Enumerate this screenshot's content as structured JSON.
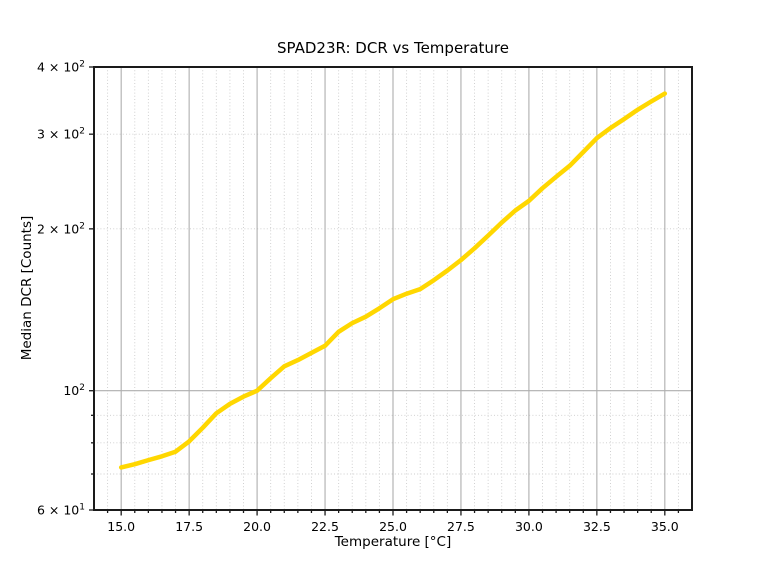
{
  "figure": {
    "background": "#ffffff",
    "axes_edge_color": "#1a1a1a",
    "major_grid_color": "#aeaeae",
    "minor_grid_color": "#cccccc",
    "text_color": "#000000"
  },
  "chart_data": {
    "type": "line",
    "title": "SPAD23R: DCR vs Temperature",
    "xlabel": "Temperature [°C]",
    "ylabel": "Median DCR [Counts]",
    "xlim": [
      14,
      36
    ],
    "ylim": [
      60,
      400
    ],
    "xscale": "linear",
    "yscale": "log",
    "grid": {
      "major": true,
      "minor": true,
      "minor_style": "dotted"
    },
    "legend": "none",
    "series": [
      {
        "name": "Median DCR",
        "color": "#FFD700",
        "x": [
          15,
          15.5,
          16,
          16.5,
          17,
          17.5,
          18,
          18.5,
          19,
          19.5,
          20,
          20.5,
          21,
          21.5,
          22,
          22.5,
          23,
          23.5,
          24,
          24.5,
          25,
          25.5,
          26,
          26.5,
          27,
          27.5,
          28,
          28.5,
          29,
          29.5,
          30,
          30.5,
          31,
          31.5,
          32,
          32.5,
          33,
          33.5,
          34,
          34.5,
          35
        ],
        "y": [
          72,
          73,
          74.3,
          75.5,
          77,
          80.5,
          85.3,
          90.8,
          94.5,
          97.5,
          100,
          105.5,
          111,
          114,
          117.6,
          121.2,
          128.7,
          133.6,
          137.3,
          142.3,
          148,
          151.5,
          154.5,
          160.5,
          167.3,
          175,
          184,
          194.3,
          205.4,
          216.4,
          225.4,
          238,
          250,
          262,
          278,
          295,
          308,
          320,
          333,
          345,
          357
        ]
      }
    ],
    "x_ticks": [
      {
        "value": 15,
        "label": "15.0"
      },
      {
        "value": 17.5,
        "label": "17.5"
      },
      {
        "value": 20,
        "label": "20.0"
      },
      {
        "value": 22.5,
        "label": "22.5"
      },
      {
        "value": 25,
        "label": "25.0"
      },
      {
        "value": 27.5,
        "label": "27.5"
      },
      {
        "value": 30,
        "label": "30.0"
      },
      {
        "value": 32.5,
        "label": "32.5"
      },
      {
        "value": 35,
        "label": "35.0"
      }
    ],
    "x_minor_ticks": [
      14.5,
      15.5,
      16,
      16.5,
      17,
      18,
      18.5,
      19,
      19.5,
      20.5,
      21,
      21.5,
      22,
      23,
      23.5,
      24,
      24.5,
      25.5,
      26,
      26.5,
      27,
      28,
      28.5,
      29,
      29.5,
      30.5,
      31,
      31.5,
      32,
      33,
      33.5,
      34,
      34.5,
      35.5
    ],
    "y_ticks": [
      {
        "value": 400,
        "base": "4 × 10",
        "exp": "2"
      },
      {
        "value": 300,
        "base": "3 × 10",
        "exp": "2"
      },
      {
        "value": 200,
        "base": "2 × 10",
        "exp": "2"
      },
      {
        "value": 100,
        "base": "10",
        "exp": "2"
      },
      {
        "value": 60,
        "base": "6 × 10",
        "exp": "1"
      }
    ],
    "y_minor_gridlines": [
      70,
      80,
      90,
      200,
      300
    ],
    "y_major_gridlines": [
      100
    ],
    "y_minor_unlabeled_ticks": [
      70,
      80,
      90
    ]
  }
}
